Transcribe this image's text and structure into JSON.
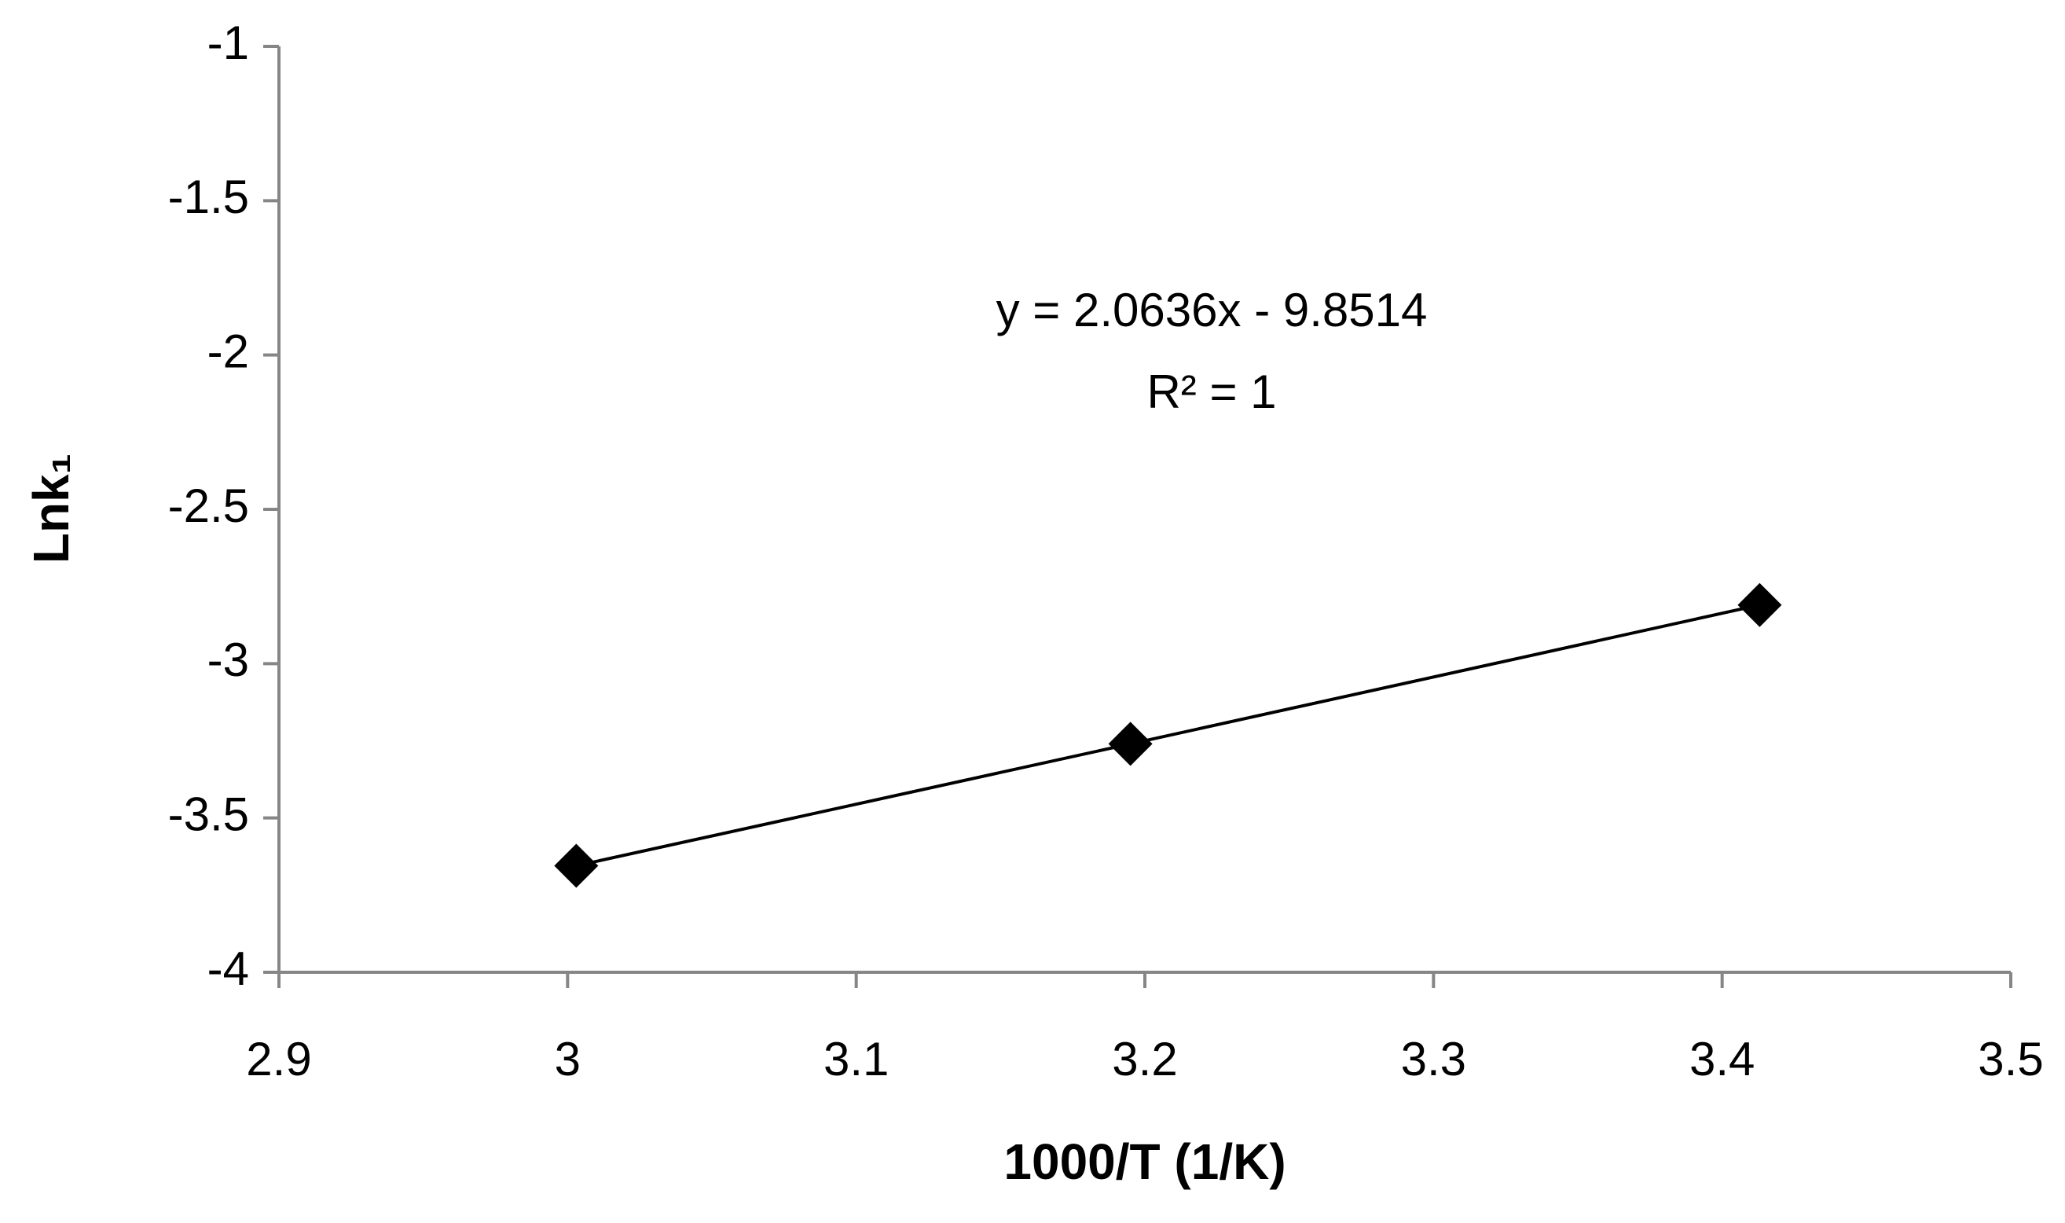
{
  "chart_data": {
    "type": "scatter",
    "xlabel": "1000/T (1/K)",
    "ylabel": "Lnk₁",
    "annotations": [
      "y = 2.0636x - 9.8514",
      "R² = 1"
    ],
    "series": [
      {
        "color": "#000000",
        "x": [
          3.003,
          3.195,
          3.413
        ],
        "values": [
          -3.655,
          -3.26,
          -2.81
        ]
      }
    ],
    "xlim": [
      2.9,
      3.5
    ],
    "xticks": [
      2.9,
      3,
      3.1,
      3.2,
      3.3,
      3.4,
      3.5
    ],
    "ylim": [
      -4,
      -1
    ],
    "yticks": [
      -1,
      -1.5,
      -2,
      -2.5,
      -3,
      -3.5,
      -4
    ],
    "grid": false,
    "marker": "diamond",
    "connect": true
  }
}
